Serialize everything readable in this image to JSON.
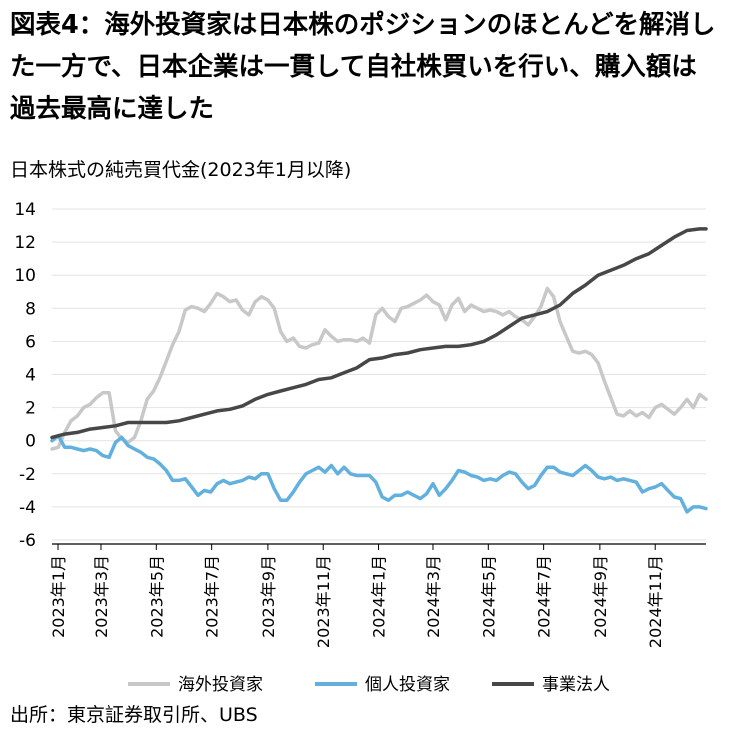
{
  "header": {
    "title": "図表4：海外投資家は日本株のポジションのほとんどを解消した一方で、日本企業は一貫して自社株買いを行い、購入額は過去最高に達した",
    "subtitle": "日本株式の純売買代金(2023年1月以降)"
  },
  "footer": {
    "source": "出所：東京証券取引所、UBS"
  },
  "chart_data": {
    "type": "line",
    "title": "日本株式の純売買代金(2023年1月以降)",
    "xlabel": "",
    "ylabel": "",
    "ylim": [
      -6,
      14
    ],
    "yticks": [
      14,
      12,
      10,
      8,
      6,
      4,
      2,
      0,
      -2,
      -4,
      -6
    ],
    "x_range": [
      "2023-01-06",
      "2024-12-27"
    ],
    "xticks": [
      "2023年1月",
      "2023年3月",
      "2023年5月",
      "2023年7月",
      "2023年9月",
      "2023年11月",
      "2024年1月",
      "2024年3月",
      "2024年5月",
      "2024年7月",
      "2024年9月",
      "2024年11月"
    ],
    "grid": true,
    "legend": "bottom",
    "series": [
      {
        "name": "海外投資家",
        "color": "#c8c8c8",
        "points": [
          [
            "2023-01-06",
            -0.5
          ],
          [
            "2023-01-13",
            -0.4
          ],
          [
            "2023-01-20",
            0.5
          ],
          [
            "2023-01-27",
            1.2
          ],
          [
            "2023-02-03",
            1.5
          ],
          [
            "2023-02-10",
            2.0
          ],
          [
            "2023-02-17",
            2.2
          ],
          [
            "2023-02-24",
            2.6
          ],
          [
            "2023-03-03",
            2.9
          ],
          [
            "2023-03-10",
            2.9
          ],
          [
            "2023-03-17",
            0.6
          ],
          [
            "2023-03-24",
            0.1
          ],
          [
            "2023-03-31",
            -0.1
          ],
          [
            "2023-04-07",
            0.2
          ],
          [
            "2023-04-14",
            1.2
          ],
          [
            "2023-04-21",
            2.5
          ],
          [
            "2023-04-28",
            3.0
          ],
          [
            "2023-05-05",
            3.8
          ],
          [
            "2023-05-12",
            4.8
          ],
          [
            "2023-05-19",
            5.8
          ],
          [
            "2023-05-26",
            6.6
          ],
          [
            "2023-06-02",
            7.9
          ],
          [
            "2023-06-09",
            8.1
          ],
          [
            "2023-06-16",
            8.0
          ],
          [
            "2023-06-23",
            7.8
          ],
          [
            "2023-06-30",
            8.3
          ],
          [
            "2023-07-07",
            8.9
          ],
          [
            "2023-07-14",
            8.7
          ],
          [
            "2023-07-21",
            8.4
          ],
          [
            "2023-07-28",
            8.5
          ],
          [
            "2023-08-04",
            7.9
          ],
          [
            "2023-08-11",
            7.6
          ],
          [
            "2023-08-18",
            8.4
          ],
          [
            "2023-08-25",
            8.7
          ],
          [
            "2023-09-01",
            8.5
          ],
          [
            "2023-09-08",
            8.0
          ],
          [
            "2023-09-15",
            6.6
          ],
          [
            "2023-09-22",
            6.0
          ],
          [
            "2023-09-29",
            6.2
          ],
          [
            "2023-10-06",
            5.7
          ],
          [
            "2023-10-13",
            5.6
          ],
          [
            "2023-10-20",
            5.8
          ],
          [
            "2023-10-27",
            5.9
          ],
          [
            "2023-11-03",
            6.7
          ],
          [
            "2023-11-10",
            6.3
          ],
          [
            "2023-11-17",
            6.0
          ],
          [
            "2023-11-24",
            6.1
          ],
          [
            "2023-12-01",
            6.1
          ],
          [
            "2023-12-08",
            6.0
          ],
          [
            "2023-12-15",
            6.2
          ],
          [
            "2023-12-22",
            5.9
          ],
          [
            "2023-12-29",
            7.6
          ],
          [
            "2024-01-05",
            8.0
          ],
          [
            "2024-01-12",
            7.5
          ],
          [
            "2024-01-19",
            7.2
          ],
          [
            "2024-01-26",
            8.0
          ],
          [
            "2024-02-02",
            8.1
          ],
          [
            "2024-02-09",
            8.3
          ],
          [
            "2024-02-16",
            8.5
          ],
          [
            "2024-02-23",
            8.8
          ],
          [
            "2024-03-01",
            8.4
          ],
          [
            "2024-03-08",
            8.2
          ],
          [
            "2024-03-15",
            7.3
          ],
          [
            "2024-03-22",
            8.2
          ],
          [
            "2024-03-29",
            8.6
          ],
          [
            "2024-04-05",
            7.8
          ],
          [
            "2024-04-12",
            8.2
          ],
          [
            "2024-04-19",
            8.0
          ],
          [
            "2024-04-26",
            7.8
          ],
          [
            "2024-05-03",
            7.9
          ],
          [
            "2024-05-10",
            7.8
          ],
          [
            "2024-05-17",
            7.6
          ],
          [
            "2024-05-24",
            7.8
          ],
          [
            "2024-05-31",
            7.5
          ],
          [
            "2024-06-07",
            7.3
          ],
          [
            "2024-06-14",
            7.0
          ],
          [
            "2024-06-21",
            7.5
          ],
          [
            "2024-06-28",
            8.1
          ],
          [
            "2024-07-05",
            9.2
          ],
          [
            "2024-07-12",
            8.7
          ],
          [
            "2024-07-19",
            7.2
          ],
          [
            "2024-07-26",
            6.3
          ],
          [
            "2024-08-02",
            5.4
          ],
          [
            "2024-08-09",
            5.3
          ],
          [
            "2024-08-16",
            5.4
          ],
          [
            "2024-08-23",
            5.2
          ],
          [
            "2024-08-30",
            4.7
          ],
          [
            "2024-09-06",
            3.6
          ],
          [
            "2024-09-13",
            2.6
          ],
          [
            "2024-09-20",
            1.6
          ],
          [
            "2024-09-27",
            1.5
          ],
          [
            "2024-10-04",
            1.8
          ],
          [
            "2024-10-11",
            1.5
          ],
          [
            "2024-10-18",
            1.7
          ],
          [
            "2024-10-25",
            1.4
          ],
          [
            "2024-11-01",
            2.0
          ],
          [
            "2024-11-08",
            2.2
          ],
          [
            "2024-11-15",
            1.9
          ],
          [
            "2024-11-22",
            1.6
          ],
          [
            "2024-11-29",
            2.0
          ],
          [
            "2024-12-06",
            2.5
          ],
          [
            "2024-12-13",
            2.0
          ],
          [
            "2024-12-20",
            2.8
          ],
          [
            "2024-12-27",
            2.5
          ]
        ]
      },
      {
        "name": "個人投資家",
        "color": "#62b0de",
        "points": [
          [
            "2023-01-06",
            0.0
          ],
          [
            "2023-01-13",
            0.3
          ],
          [
            "2023-01-20",
            -0.4
          ],
          [
            "2023-01-27",
            -0.4
          ],
          [
            "2023-02-03",
            -0.5
          ],
          [
            "2023-02-10",
            -0.6
          ],
          [
            "2023-02-17",
            -0.5
          ],
          [
            "2023-02-24",
            -0.6
          ],
          [
            "2023-03-03",
            -0.9
          ],
          [
            "2023-03-10",
            -1.0
          ],
          [
            "2023-03-17",
            -0.1
          ],
          [
            "2023-03-24",
            0.2
          ],
          [
            "2023-03-31",
            -0.3
          ],
          [
            "2023-04-07",
            -0.5
          ],
          [
            "2023-04-14",
            -0.7
          ],
          [
            "2023-04-21",
            -1.0
          ],
          [
            "2023-04-28",
            -1.1
          ],
          [
            "2023-05-05",
            -1.4
          ],
          [
            "2023-05-12",
            -1.8
          ],
          [
            "2023-05-19",
            -2.4
          ],
          [
            "2023-05-26",
            -2.4
          ],
          [
            "2023-06-02",
            -2.3
          ],
          [
            "2023-06-09",
            -2.8
          ],
          [
            "2023-06-16",
            -3.3
          ],
          [
            "2023-06-23",
            -3.0
          ],
          [
            "2023-06-30",
            -3.1
          ],
          [
            "2023-07-07",
            -2.6
          ],
          [
            "2023-07-14",
            -2.4
          ],
          [
            "2023-07-21",
            -2.6
          ],
          [
            "2023-07-28",
            -2.5
          ],
          [
            "2023-08-04",
            -2.4
          ],
          [
            "2023-08-11",
            -2.2
          ],
          [
            "2023-08-18",
            -2.3
          ],
          [
            "2023-08-25",
            -2.0
          ],
          [
            "2023-09-01",
            -2.0
          ],
          [
            "2023-09-08",
            -2.9
          ],
          [
            "2023-09-15",
            -3.6
          ],
          [
            "2023-09-22",
            -3.6
          ],
          [
            "2023-09-29",
            -3.1
          ],
          [
            "2023-10-06",
            -2.5
          ],
          [
            "2023-10-13",
            -2.0
          ],
          [
            "2023-10-20",
            -1.8
          ],
          [
            "2023-10-27",
            -1.6
          ],
          [
            "2023-11-03",
            -1.9
          ],
          [
            "2023-11-10",
            -1.5
          ],
          [
            "2023-11-17",
            -2.0
          ],
          [
            "2023-11-24",
            -1.6
          ],
          [
            "2023-12-01",
            -2.0
          ],
          [
            "2023-12-08",
            -2.1
          ],
          [
            "2023-12-15",
            -2.1
          ],
          [
            "2023-12-22",
            -2.1
          ],
          [
            "2023-12-29",
            -2.5
          ],
          [
            "2024-01-05",
            -3.4
          ],
          [
            "2024-01-12",
            -3.6
          ],
          [
            "2024-01-19",
            -3.3
          ],
          [
            "2024-01-26",
            -3.3
          ],
          [
            "2024-02-02",
            -3.1
          ],
          [
            "2024-02-09",
            -3.3
          ],
          [
            "2024-02-16",
            -3.5
          ],
          [
            "2024-02-23",
            -3.2
          ],
          [
            "2024-03-01",
            -2.6
          ],
          [
            "2024-03-08",
            -3.3
          ],
          [
            "2024-03-15",
            -2.9
          ],
          [
            "2024-03-22",
            -2.4
          ],
          [
            "2024-03-29",
            -1.8
          ],
          [
            "2024-04-05",
            -1.9
          ],
          [
            "2024-04-12",
            -2.1
          ],
          [
            "2024-04-19",
            -2.2
          ],
          [
            "2024-04-26",
            -2.4
          ],
          [
            "2024-05-03",
            -2.3
          ],
          [
            "2024-05-10",
            -2.4
          ],
          [
            "2024-05-17",
            -2.1
          ],
          [
            "2024-05-24",
            -1.9
          ],
          [
            "2024-05-31",
            -2.0
          ],
          [
            "2024-06-07",
            -2.5
          ],
          [
            "2024-06-14",
            -2.9
          ],
          [
            "2024-06-21",
            -2.7
          ],
          [
            "2024-06-28",
            -2.1
          ],
          [
            "2024-07-05",
            -1.6
          ],
          [
            "2024-07-12",
            -1.6
          ],
          [
            "2024-07-19",
            -1.9
          ],
          [
            "2024-07-26",
            -2.0
          ],
          [
            "2024-08-02",
            -2.1
          ],
          [
            "2024-08-09",
            -1.8
          ],
          [
            "2024-08-16",
            -1.5
          ],
          [
            "2024-08-23",
            -1.8
          ],
          [
            "2024-08-30",
            -2.2
          ],
          [
            "2024-09-06",
            -2.3
          ],
          [
            "2024-09-13",
            -2.2
          ],
          [
            "2024-09-20",
            -2.4
          ],
          [
            "2024-09-27",
            -2.3
          ],
          [
            "2024-10-04",
            -2.4
          ],
          [
            "2024-10-11",
            -2.5
          ],
          [
            "2024-10-18",
            -3.1
          ],
          [
            "2024-10-25",
            -2.9
          ],
          [
            "2024-11-01",
            -2.8
          ],
          [
            "2024-11-08",
            -2.6
          ],
          [
            "2024-11-15",
            -3.0
          ],
          [
            "2024-11-22",
            -3.4
          ],
          [
            "2024-11-29",
            -3.5
          ],
          [
            "2024-12-06",
            -4.3
          ],
          [
            "2024-12-13",
            -4.0
          ],
          [
            "2024-12-20",
            -4.0
          ],
          [
            "2024-12-27",
            -4.1
          ]
        ]
      },
      {
        "name": "事業法人",
        "color": "#474747",
        "points": [
          [
            "2023-01-06",
            0.2
          ],
          [
            "2023-01-20",
            0.4
          ],
          [
            "2023-02-03",
            0.5
          ],
          [
            "2023-02-17",
            0.7
          ],
          [
            "2023-03-03",
            0.8
          ],
          [
            "2023-03-17",
            0.9
          ],
          [
            "2023-03-31",
            1.1
          ],
          [
            "2023-04-14",
            1.1
          ],
          [
            "2023-04-28",
            1.1
          ],
          [
            "2023-05-12",
            1.1
          ],
          [
            "2023-05-26",
            1.2
          ],
          [
            "2023-06-09",
            1.4
          ],
          [
            "2023-06-23",
            1.6
          ],
          [
            "2023-07-07",
            1.8
          ],
          [
            "2023-07-21",
            1.9
          ],
          [
            "2023-08-04",
            2.1
          ],
          [
            "2023-08-18",
            2.5
          ],
          [
            "2023-09-01",
            2.8
          ],
          [
            "2023-09-15",
            3.0
          ],
          [
            "2023-09-29",
            3.2
          ],
          [
            "2023-10-13",
            3.4
          ],
          [
            "2023-10-27",
            3.7
          ],
          [
            "2023-11-10",
            3.8
          ],
          [
            "2023-11-24",
            4.1
          ],
          [
            "2023-12-08",
            4.4
          ],
          [
            "2023-12-22",
            4.9
          ],
          [
            "2024-01-05",
            5.0
          ],
          [
            "2024-01-19",
            5.2
          ],
          [
            "2024-02-02",
            5.3
          ],
          [
            "2024-02-16",
            5.5
          ],
          [
            "2024-03-01",
            5.6
          ],
          [
            "2024-03-15",
            5.7
          ],
          [
            "2024-03-29",
            5.7
          ],
          [
            "2024-04-12",
            5.8
          ],
          [
            "2024-04-26",
            6.0
          ],
          [
            "2024-05-10",
            6.4
          ],
          [
            "2024-05-24",
            6.9
          ],
          [
            "2024-06-07",
            7.4
          ],
          [
            "2024-06-21",
            7.6
          ],
          [
            "2024-07-05",
            7.8
          ],
          [
            "2024-07-19",
            8.2
          ],
          [
            "2024-08-02",
            8.9
          ],
          [
            "2024-08-16",
            9.4
          ],
          [
            "2024-08-30",
            10.0
          ],
          [
            "2024-09-13",
            10.3
          ],
          [
            "2024-09-27",
            10.6
          ],
          [
            "2024-10-11",
            11.0
          ],
          [
            "2024-10-25",
            11.3
          ],
          [
            "2024-11-08",
            11.8
          ],
          [
            "2024-11-22",
            12.3
          ],
          [
            "2024-12-06",
            12.7
          ],
          [
            "2024-12-20",
            12.8
          ],
          [
            "2024-12-27",
            12.8
          ]
        ]
      }
    ]
  }
}
